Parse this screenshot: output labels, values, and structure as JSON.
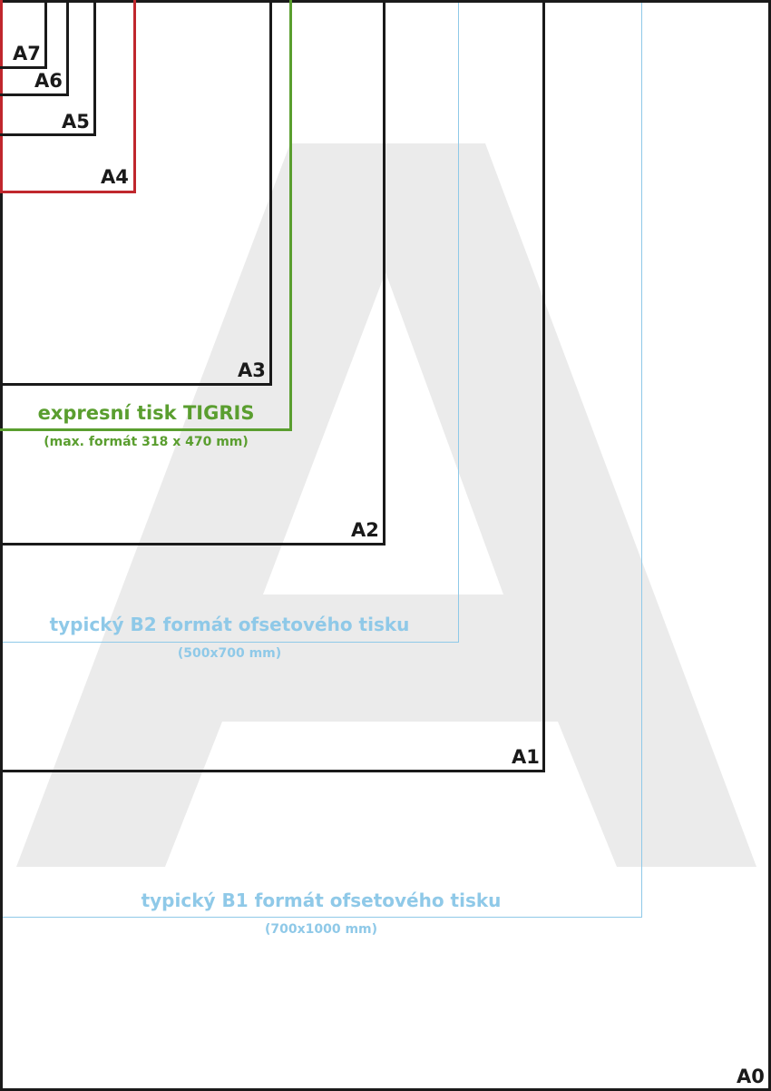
{
  "diagram": {
    "watermark_letter": "A",
    "colors": {
      "a_series": "#1a1a1a",
      "a4_highlight": "#c0272d",
      "tigris": "#5a9e2f",
      "b_series": "#8fc9e8",
      "watermark": "#ebebeb"
    },
    "formats": {
      "a0": "A0",
      "a1": "A1",
      "a2": "A2",
      "a3": "A3",
      "a4": "A4",
      "a5": "A5",
      "a6": "A6",
      "a7": "A7"
    },
    "tigris": {
      "title": "expresní tisk TIGRIS",
      "subtitle": "(max. formát 318 x 470 mm)"
    },
    "b2": {
      "title": "typický B2 formát ofsetového tisku",
      "subtitle": "(500x700 mm)"
    },
    "b1": {
      "title": "typický B1 formát ofsetového tisku",
      "subtitle": "(700x1000 mm)"
    }
  }
}
